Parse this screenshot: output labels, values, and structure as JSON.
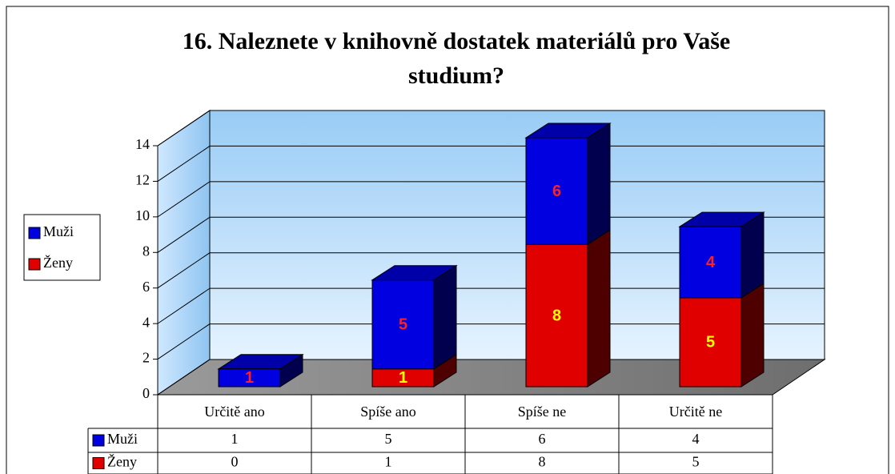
{
  "chart_data": {
    "type": "bar3d_stacked",
    "title": "16. Naleznete v knihovně dostatek materiálů pro Vaše studium?",
    "categories": [
      "Určitě ano",
      "Spíše ano",
      "Spíše ne",
      "Určitě ne"
    ],
    "series": [
      {
        "name": "Ženy",
        "color": "#e00000",
        "label_color": "#ffff00",
        "values": [
          0,
          1,
          8,
          5
        ]
      },
      {
        "name": "Muži",
        "color": "#0000e0",
        "label_color": "#ff2020",
        "values": [
          1,
          5,
          6,
          4
        ]
      }
    ],
    "ylim": [
      0,
      14
    ],
    "yticks": [
      0,
      2,
      4,
      6,
      8,
      10,
      12,
      14
    ],
    "grid": true,
    "legend": "left",
    "data_table": true
  }
}
